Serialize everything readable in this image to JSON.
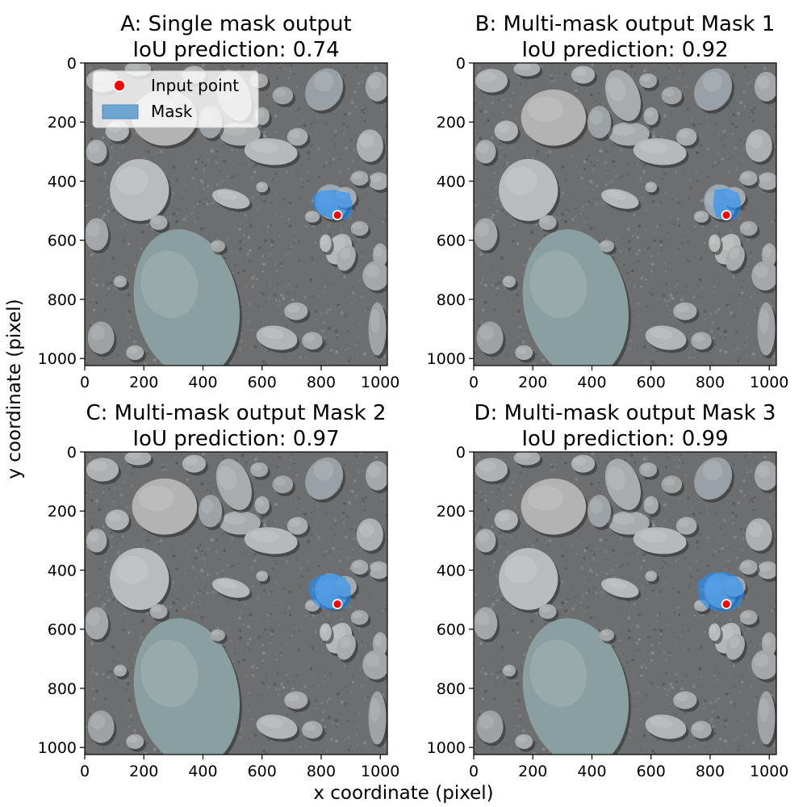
{
  "figure": {
    "xlabel": "x coordinate (pixel)",
    "ylabel": "y coordinate (pixel)"
  },
  "colors": {
    "mask": "#1e90ff",
    "mask_legend": "#6fa5d2",
    "point": "#ff0000",
    "point_edge": "#ffffff"
  },
  "chart_data": [
    {
      "type": "image",
      "panel": "A",
      "title": "A: Single mask output",
      "subtitle": "IoU prediction: 0.74",
      "xlim": [
        0,
        1024
      ],
      "ylim": [
        1024,
        0
      ],
      "xticks": [
        0,
        200,
        400,
        600,
        800,
        1000
      ],
      "yticks": [
        0,
        200,
        400,
        600,
        800,
        1000
      ],
      "input_point": [
        855,
        515
      ],
      "iou": 0.74,
      "mask_polygon": [
        [
          770,
          450
        ],
        [
          800,
          432
        ],
        [
          845,
          430
        ],
        [
          895,
          440
        ],
        [
          905,
          470
        ],
        [
          902,
          515
        ],
        [
          880,
          530
        ],
        [
          840,
          528
        ],
        [
          800,
          515
        ],
        [
          775,
          490
        ]
      ],
      "legend": [
        {
          "label": "Input point",
          "kind": "point"
        },
        {
          "label": "Mask",
          "kind": "patch"
        }
      ],
      "legend_position": "upper left"
    },
    {
      "type": "image",
      "panel": "B",
      "title": "B: Multi-mask output Mask 1",
      "subtitle": "IoU prediction: 0.92",
      "xlim": [
        0,
        1024
      ],
      "ylim": [
        1024,
        0
      ],
      "xticks": [
        0,
        200,
        400,
        600,
        800,
        1000
      ],
      "yticks": [
        0,
        200,
        400,
        600,
        800,
        1000
      ],
      "input_point": [
        855,
        515
      ],
      "iou": 0.92,
      "mask_polygon": [
        [
          815,
          430
        ],
        [
          860,
          425
        ],
        [
          895,
          440
        ],
        [
          905,
          470
        ],
        [
          900,
          510
        ],
        [
          880,
          530
        ],
        [
          845,
          532
        ],
        [
          820,
          520
        ],
        [
          810,
          480
        ]
      ]
    },
    {
      "type": "image",
      "panel": "C",
      "title": "C: Multi-mask output Mask 2",
      "subtitle": "IoU prediction: 0.97",
      "xlim": [
        0,
        1024
      ],
      "ylim": [
        1024,
        0
      ],
      "xticks": [
        0,
        200,
        400,
        600,
        800,
        1000
      ],
      "yticks": [
        0,
        200,
        400,
        600,
        800,
        1000
      ],
      "input_point": [
        855,
        515
      ],
      "iou": 0.97,
      "mask_polygon": [
        [
          760,
          440
        ],
        [
          800,
          415
        ],
        [
          845,
          412
        ],
        [
          880,
          425
        ],
        [
          900,
          455
        ],
        [
          900,
          500
        ],
        [
          885,
          528
        ],
        [
          845,
          538
        ],
        [
          800,
          530
        ],
        [
          770,
          505
        ],
        [
          757,
          470
        ]
      ]
    },
    {
      "type": "image",
      "panel": "D",
      "title": "D: Multi-mask output Mask 3",
      "subtitle": "IoU prediction: 0.99",
      "xlim": [
        0,
        1024
      ],
      "ylim": [
        1024,
        0
      ],
      "xticks": [
        0,
        200,
        400,
        600,
        800,
        1000
      ],
      "yticks": [
        0,
        200,
        400,
        600,
        800,
        1000
      ],
      "input_point": [
        855,
        515
      ],
      "iou": 0.99,
      "mask_polygon": [
        [
          758,
          440
        ],
        [
          798,
          410
        ],
        [
          845,
          405
        ],
        [
          885,
          418
        ],
        [
          910,
          445
        ],
        [
          915,
          485
        ],
        [
          900,
          520
        ],
        [
          870,
          538
        ],
        [
          830,
          540
        ],
        [
          790,
          528
        ],
        [
          762,
          500
        ]
      ]
    }
  ]
}
